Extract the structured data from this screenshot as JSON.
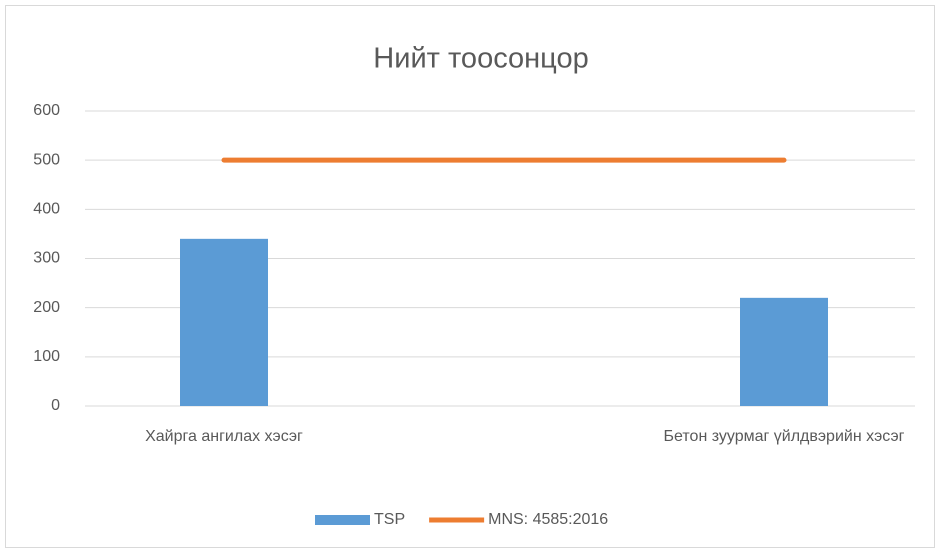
{
  "chart_data": {
    "type": "bar",
    "title": "Нийт тоосонцор",
    "categories": [
      "Хайрга ангилах хэсэг",
      "Бетон зуурмаг үйлдвэрийн хэсэг"
    ],
    "series": [
      {
        "name": "TSP",
        "type": "bar",
        "color": "#5b9bd5",
        "values": [
          340,
          220
        ]
      },
      {
        "name": "MNS: 4585:2016",
        "type": "line",
        "color": "#ed7d31",
        "values": [
          500,
          500
        ]
      }
    ],
    "ylim": [
      0,
      600
    ],
    "yticks": [
      0,
      100,
      200,
      300,
      400,
      500,
      600
    ],
    "grid": true,
    "legend": "bottom"
  }
}
